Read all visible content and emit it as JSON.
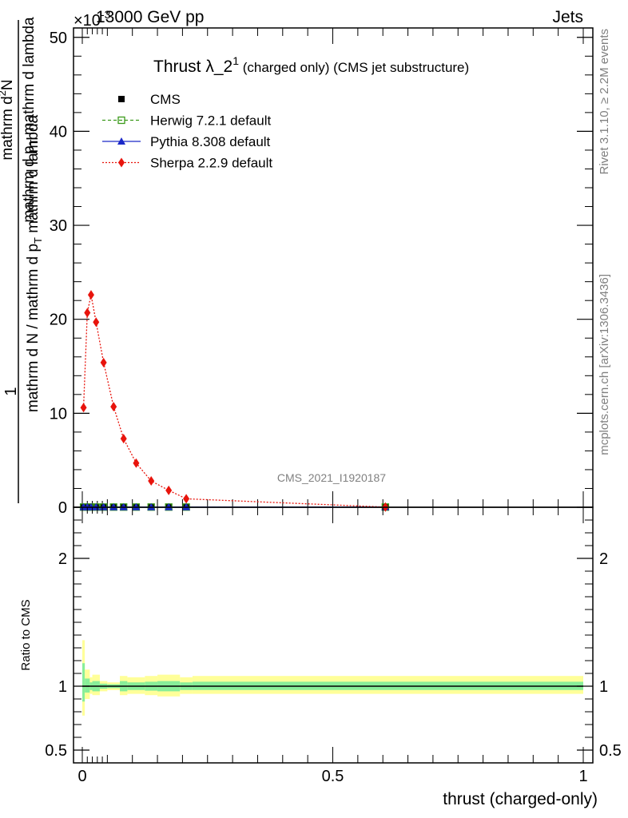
{
  "header": {
    "left": "13000 GeV pp",
    "right": "Jets",
    "exponent_label": "×10",
    "exponent_power": "-3"
  },
  "plot_title": {
    "main": "Thrust λ_2",
    "superscript": "1",
    "suffix": " (charged only) (CMS jet substructure)"
  },
  "side_labels": {
    "rivet": "Rivet 3.1.10, ≥ 2.2M events",
    "mcplots": "mcplots.cern.ch [arXiv:1306.3436]"
  },
  "watermark": "CMS_2021_I1920187",
  "y_label": {
    "numerator": "1",
    "denominator_line1": "mathrm d N / mathrm d p",
    "denominator_line1_sub": "T",
    "denominator_line1_rest": " mathrm d lambda",
    "numerator_full": "mathrm d",
    "numerator_sup": "2",
    "numerator_N": "N",
    "numerator_line2": "mathrm d p",
    "numerator_line2_sub": "T",
    "numerator_line2_rest": " mathrm d lambda"
  },
  "ratio_label": "Ratio to CMS",
  "x_label": "thrust (charged-only)",
  "legend": [
    {
      "name": "CMS",
      "color": "#000000",
      "marker": "square-filled",
      "line": "none"
    },
    {
      "name": "Herwig 7.2.1 default",
      "color": "#3a9a1a",
      "marker": "square-open",
      "line": "dashed"
    },
    {
      "name": "Pythia 8.308 default",
      "color": "#1a28c8",
      "marker": "triangle",
      "line": "solid"
    },
    {
      "name": "Sherpa 2.2.9 default",
      "color": "#e8140c",
      "marker": "diamond",
      "line": "dotted"
    }
  ],
  "chart_data": [
    {
      "type": "line",
      "panel": "main",
      "xlim": [
        -0.02,
        1.02
      ],
      "ylim": [
        0,
        51
      ],
      "y_scale_note": "×10^-3",
      "yticks": [
        0,
        10,
        20,
        30,
        40,
        50
      ],
      "ytick_labels": [
        "0",
        "10",
        "20",
        "30",
        "40",
        "50"
      ],
      "xticks": [
        0,
        0.5,
        1
      ],
      "series": [
        {
          "name": "Sherpa 2.2.9 default",
          "x": [
            0.0025,
            0.01,
            0.0175,
            0.0275,
            0.0425,
            0.0625,
            0.0825,
            0.1075,
            0.1375,
            0.1725,
            0.2075,
            0.605
          ],
          "y": [
            10.6,
            20.7,
            22.6,
            19.7,
            15.4,
            10.7,
            7.3,
            4.7,
            2.8,
            1.8,
            0.9,
            0.02
          ]
        },
        {
          "name": "CMS",
          "x": [
            0.0025,
            0.01,
            0.0175,
            0.0275,
            0.0425,
            0.0625,
            0.0825,
            0.1075,
            0.1375,
            0.1725,
            0.2075,
            0.605
          ],
          "y": [
            0.02,
            0.02,
            0.02,
            0.02,
            0.02,
            0.02,
            0.02,
            0.02,
            0.02,
            0.02,
            0.02,
            0.02
          ]
        },
        {
          "name": "Herwig 7.2.1 default",
          "x": [
            0.0025,
            0.01,
            0.0175,
            0.0275,
            0.0425,
            0.0625,
            0.0825,
            0.1075,
            0.1375,
            0.1725,
            0.2075,
            0.605
          ],
          "y": [
            0.02,
            0.02,
            0.02,
            0.02,
            0.02,
            0.02,
            0.02,
            0.02,
            0.02,
            0.02,
            0.02,
            0.02
          ]
        },
        {
          "name": "Pythia 8.308 default",
          "x": [
            0.0025,
            0.01,
            0.0175,
            0.0275,
            0.0425,
            0.0625,
            0.0825,
            0.1075,
            0.1375,
            0.1725,
            0.2075,
            0.605
          ],
          "y": [
            0.02,
            0.02,
            0.02,
            0.02,
            0.02,
            0.02,
            0.02,
            0.02,
            0.02,
            0.02,
            0.02,
            0.02
          ]
        }
      ]
    },
    {
      "type": "area",
      "panel": "ratio",
      "xlim": [
        -0.02,
        1.02
      ],
      "ylim": [
        0.4,
        2.4
      ],
      "yticks": [
        0.5,
        1,
        2
      ],
      "ytick_labels": [
        "0.5",
        "1",
        "2"
      ],
      "xticks": [
        0,
        0.5,
        1
      ],
      "xtick_labels": [
        "0",
        "0.5",
        "1"
      ],
      "bin_edges": [
        0,
        0.005,
        0.015,
        0.02,
        0.035,
        0.05,
        0.075,
        0.09,
        0.125,
        0.15,
        0.195,
        0.22,
        1.0
      ],
      "band_outer": [
        [
          0.77,
          1.36
        ],
        [
          0.9,
          1.13
        ],
        [
          0.94,
          1.07
        ],
        [
          0.93,
          1.09
        ],
        [
          0.96,
          1.04
        ],
        [
          0.97,
          1.03
        ],
        [
          0.93,
          1.08
        ],
        [
          0.94,
          1.07
        ],
        [
          0.93,
          1.08
        ],
        [
          0.92,
          1.09
        ],
        [
          0.94,
          1.07
        ],
        [
          0.94,
          1.08
        ]
      ],
      "band_inner": [
        [
          0.88,
          1.18
        ],
        [
          0.95,
          1.06
        ],
        [
          0.97,
          1.03
        ],
        [
          0.96,
          1.04
        ],
        [
          0.98,
          1.02
        ],
        [
          0.985,
          1.015
        ],
        [
          0.96,
          1.04
        ],
        [
          0.97,
          1.03
        ],
        [
          0.965,
          1.035
        ],
        [
          0.96,
          1.04
        ],
        [
          0.97,
          1.03
        ],
        [
          0.97,
          1.035
        ]
      ],
      "band_colors": {
        "outer": "#ffff99",
        "inner": "#88ee99"
      },
      "reference_line": 1
    }
  ]
}
